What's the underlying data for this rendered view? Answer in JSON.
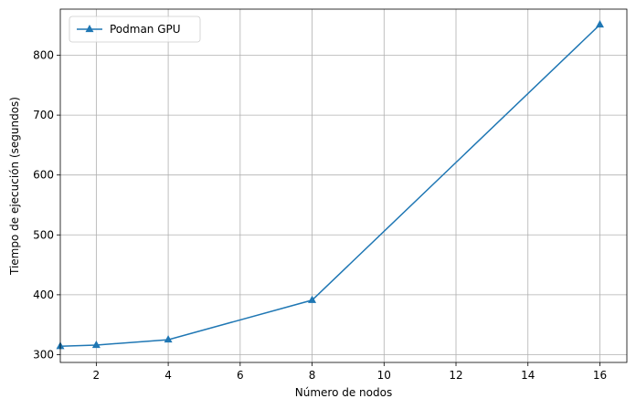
{
  "chart_data": {
    "type": "line",
    "xlabel": "Número de nodos",
    "ylabel": "Tiempo de ejecución (segundos)",
    "xlim": [
      1,
      16.75
    ],
    "ylim": [
      287,
      877
    ],
    "xticks": [
      2,
      4,
      6,
      8,
      10,
      12,
      14,
      16
    ],
    "yticks": [
      300,
      400,
      500,
      600,
      700,
      800
    ],
    "grid": true,
    "legend_position": "top-left",
    "series": [
      {
        "name": "Podman GPU",
        "color": "#1f77b4",
        "marker": "triangle-up",
        "x": [
          1,
          2,
          4,
          8,
          16
        ],
        "y": [
          314,
          316,
          325,
          391,
          851
        ]
      }
    ]
  }
}
